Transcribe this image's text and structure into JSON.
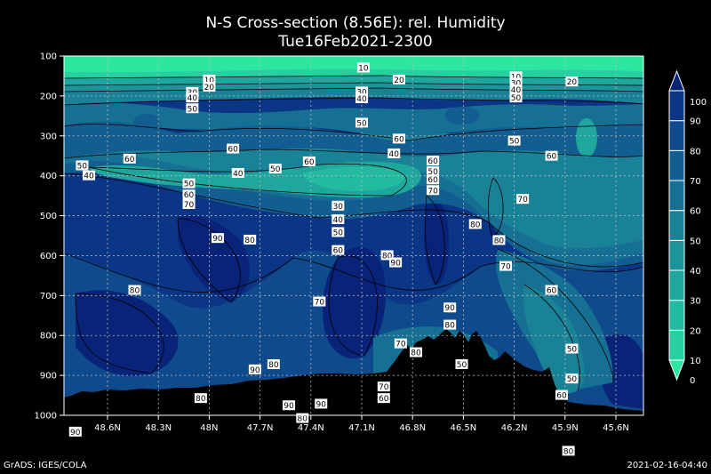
{
  "title": "N-S Cross-section (8.56E): rel. Humidity",
  "subtitle": "Tue16Feb2021-2300",
  "footer_left": "GrADS: IGES/COLA",
  "footer_right": "2021-02-16-04:40",
  "chart_data": {
    "type": "heatmap",
    "title": "N-S Cross-section (8.56E): rel. Humidity",
    "subtitle": "Tue16Feb2021-2300",
    "x_ticks": [
      "48.6N",
      "48.3N",
      "48N",
      "47.7N",
      "47.4N",
      "47.1N",
      "46.8N",
      "46.5N",
      "46.2N",
      "45.9N",
      "45.6N"
    ],
    "y_ticks": [
      100,
      200,
      300,
      400,
      500,
      600,
      700,
      800,
      900,
      1000
    ],
    "ylim": [
      1000,
      100
    ],
    "grid": true,
    "colorbar": {
      "levels": [
        0,
        10,
        20,
        30,
        40,
        50,
        60,
        70,
        80,
        90,
        100
      ],
      "colors": [
        "#2de7a0",
        "#26d0a0",
        "#22bba0",
        "#1fa79d",
        "#1d9499",
        "#1a8297",
        "#167094",
        "#135e90",
        "#0f4a8c",
        "#0b3585",
        "#082377"
      ]
    },
    "contour_labels": [
      {
        "v": "10",
        "lat": 48.0,
        "p": 160
      },
      {
        "v": "20",
        "lat": 48.0,
        "p": 178
      },
      {
        "v": "30",
        "lat": 48.1,
        "p": 191
      },
      {
        "v": "40",
        "lat": 48.1,
        "p": 205
      },
      {
        "v": "50",
        "lat": 48.1,
        "p": 232
      },
      {
        "v": "10",
        "lat": 47.09,
        "p": 130
      },
      {
        "v": "20",
        "lat": 46.88,
        "p": 160
      },
      {
        "v": "30",
        "lat": 47.1,
        "p": 190
      },
      {
        "v": "40",
        "lat": 47.1,
        "p": 207
      },
      {
        "v": "50",
        "lat": 47.1,
        "p": 268
      },
      {
        "v": "10",
        "lat": 46.19,
        "p": 152
      },
      {
        "v": "30",
        "lat": 46.19,
        "p": 168
      },
      {
        "v": "40",
        "lat": 46.19,
        "p": 185
      },
      {
        "v": "50",
        "lat": 46.19,
        "p": 205
      },
      {
        "v": "20",
        "lat": 45.86,
        "p": 165
      },
      {
        "v": "60",
        "lat": 46.88,
        "p": 308
      },
      {
        "v": "40",
        "lat": 46.91,
        "p": 345
      },
      {
        "v": "50",
        "lat": 46.2,
        "p": 313
      },
      {
        "v": "50",
        "lat": 48.75,
        "p": 375
      },
      {
        "v": "40",
        "lat": 48.71,
        "p": 400
      },
      {
        "v": "60",
        "lat": 48.47,
        "p": 358
      },
      {
        "v": "60",
        "lat": 47.86,
        "p": 333
      },
      {
        "v": "50",
        "lat": 47.61,
        "p": 383
      },
      {
        "v": "60",
        "lat": 47.41,
        "p": 365
      },
      {
        "v": "40",
        "lat": 47.83,
        "p": 394
      },
      {
        "v": "50",
        "lat": 48.12,
        "p": 420
      },
      {
        "v": "60",
        "lat": 48.12,
        "p": 448
      },
      {
        "v": "70",
        "lat": 48.12,
        "p": 472
      },
      {
        "v": "60",
        "lat": 46.68,
        "p": 363
      },
      {
        "v": "50",
        "lat": 46.68,
        "p": 390
      },
      {
        "v": "60",
        "lat": 46.68,
        "p": 410
      },
      {
        "v": "70",
        "lat": 46.68,
        "p": 437
      },
      {
        "v": "70",
        "lat": 46.15,
        "p": 459
      },
      {
        "v": "60",
        "lat": 45.98,
        "p": 351
      },
      {
        "v": "80",
        "lat": 46.43,
        "p": 522
      },
      {
        "v": "30",
        "lat": 47.24,
        "p": 476
      },
      {
        "v": "40",
        "lat": 47.24,
        "p": 510
      },
      {
        "v": "50",
        "lat": 47.24,
        "p": 542
      },
      {
        "v": "60",
        "lat": 47.24,
        "p": 587
      },
      {
        "v": "90",
        "lat": 47.95,
        "p": 557
      },
      {
        "v": "80",
        "lat": 47.76,
        "p": 561
      },
      {
        "v": "80",
        "lat": 46.95,
        "p": 600
      },
      {
        "v": "90",
        "lat": 46.9,
        "p": 618
      },
      {
        "v": "80",
        "lat": 46.29,
        "p": 562
      },
      {
        "v": "70",
        "lat": 46.25,
        "p": 627
      },
      {
        "v": "60",
        "lat": 45.98,
        "p": 687
      },
      {
        "v": "80",
        "lat": 48.44,
        "p": 687
      },
      {
        "v": "70",
        "lat": 47.35,
        "p": 716
      },
      {
        "v": "90",
        "lat": 46.58,
        "p": 731
      },
      {
        "v": "80",
        "lat": 46.58,
        "p": 774
      },
      {
        "v": "70",
        "lat": 46.87,
        "p": 821
      },
      {
        "v": "80",
        "lat": 46.78,
        "p": 843
      },
      {
        "v": "50",
        "lat": 46.51,
        "p": 873
      },
      {
        "v": "50",
        "lat": 45.86,
        "p": 834
      },
      {
        "v": "80",
        "lat": 47.62,
        "p": 873
      },
      {
        "v": "90",
        "lat": 47.73,
        "p": 886
      },
      {
        "v": "50",
        "lat": 45.86,
        "p": 909
      },
      {
        "v": "60",
        "lat": 45.92,
        "p": 950
      },
      {
        "v": "70",
        "lat": 46.97,
        "p": 929
      },
      {
        "v": "60",
        "lat": 46.97,
        "p": 958
      },
      {
        "v": "80",
        "lat": 48.05,
        "p": 958
      },
      {
        "v": "90",
        "lat": 47.53,
        "p": 976
      },
      {
        "v": "90",
        "lat": 47.34,
        "p": 972
      },
      {
        "v": "80",
        "lat": 47.45,
        "p": 1008
      },
      {
        "v": "90",
        "lat": 48.79,
        "p": 1042
      },
      {
        "v": "80",
        "lat": 45.88,
        "p": 1090
      }
    ]
  }
}
